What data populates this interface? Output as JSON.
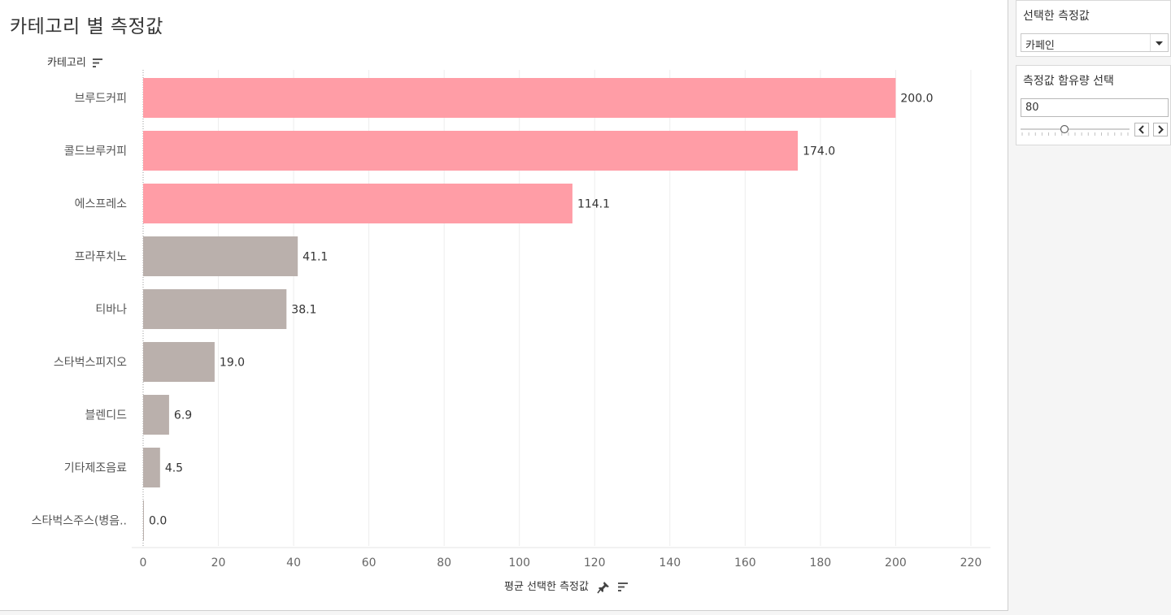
{
  "header": {
    "title": "카테고리 별 측정값",
    "category_label": "카테고리"
  },
  "chart_data": {
    "type": "bar",
    "orientation": "horizontal",
    "categories": [
      "브루드커피",
      "콜드브루커피",
      "에스프레소",
      "프라푸치노",
      "티바나",
      "스타벅스피지오",
      "블렌디드",
      "기타제조음료",
      "스타벅스주스(병음.."
    ],
    "values": [
      200.0,
      174.0,
      114.1,
      41.1,
      38.1,
      19.0,
      6.9,
      4.5,
      0.0
    ],
    "data_labels": [
      "200.0",
      "174.0",
      "114.1",
      "41.1",
      "38.1",
      "19.0",
      "6.9",
      "4.5",
      "0.0"
    ],
    "highlighted": [
      true,
      true,
      true,
      false,
      false,
      false,
      false,
      false,
      false
    ],
    "highlight_color": "#ff9da6",
    "base_color": "#bab0ac",
    "xlabel": "평균 선택한 측정값",
    "ylabel": "카테고리",
    "xlim": [
      0,
      220
    ],
    "xticks": [
      0,
      20,
      40,
      60,
      80,
      100,
      120,
      140,
      160,
      180,
      200,
      220
    ],
    "grid": "vertical"
  },
  "sidebar": {
    "measure_title": "선택한 측정값",
    "measure_value": "카페인",
    "amount_title": "측정값 함유량 선택",
    "amount_value": "80",
    "slider_fraction": 0.4
  }
}
